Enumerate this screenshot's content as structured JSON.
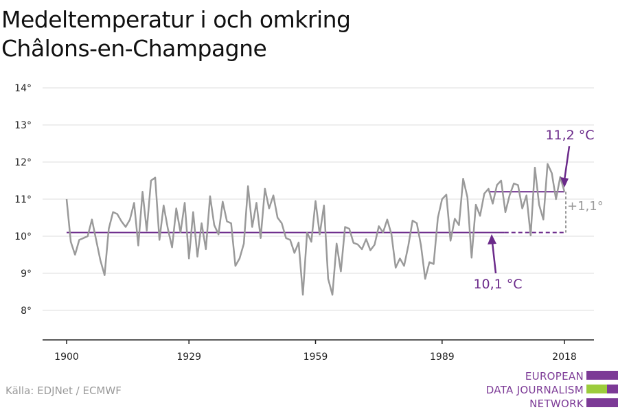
{
  "title_lines": [
    "Medeltemperatur i och omkring",
    "Châlons-en-Champagne"
  ],
  "source": "Källa: EDJNet / ECMWF",
  "logo": {
    "lines": [
      "EUROPEAN",
      "DATA JOURNALISM",
      "NETWORK"
    ],
    "colors": {
      "purple": "#7c3a96",
      "green": "#9ccc3c"
    }
  },
  "colors": {
    "series": "#9a9a9a",
    "avg_line": "#6b2a8a",
    "annotation": "#6b2a8a",
    "diff": "#9a9a9a",
    "grid": "#dddddd",
    "axis": "#222222"
  },
  "chart_data": {
    "type": "line",
    "title": "Medeltemperatur i och omkring Châlons-en-Champagne",
    "xlabel": "",
    "ylabel": "",
    "xlim": [
      1899,
      2020
    ],
    "ylim": [
      7.1,
      14.3
    ],
    "x_ticks": [
      1900,
      1929,
      1959,
      1989,
      2018
    ],
    "x_tick_labels": [
      "1900",
      "1929",
      "1959",
      "1989",
      "2018"
    ],
    "y_ticks": [
      8,
      9,
      10,
      11,
      12,
      13,
      14
    ],
    "y_tick_labels": [
      "8°",
      "9°",
      "10°",
      "11°",
      "12°",
      "13°",
      "14°"
    ],
    "grid": true,
    "series": [
      {
        "x_start": 1900,
        "x_end": 2018,
        "values": [
          11.0,
          9.85,
          9.5,
          9.9,
          9.95,
          10.0,
          10.45,
          9.9,
          9.35,
          8.95,
          10.2,
          10.65,
          10.6,
          10.4,
          10.25,
          10.45,
          10.9,
          9.75,
          11.2,
          10.15,
          11.5,
          11.58,
          9.9,
          10.83,
          10.2,
          9.7,
          10.75,
          10.1,
          10.9,
          9.4,
          10.65,
          9.45,
          10.35,
          9.65,
          11.08,
          10.3,
          10.05,
          10.93,
          10.4,
          10.35,
          9.2,
          9.4,
          9.8,
          11.35,
          10.25,
          10.9,
          9.95,
          11.28,
          10.75,
          11.1,
          10.5,
          10.35,
          9.95,
          9.9,
          9.55,
          9.83,
          8.42,
          10.1,
          9.85,
          10.95,
          10.05,
          10.83,
          8.85,
          8.42,
          9.8,
          9.05,
          10.25,
          10.2,
          9.82,
          9.78,
          9.65,
          9.92,
          9.62,
          9.77,
          10.27,
          10.1,
          10.45,
          10.05,
          9.15,
          9.4,
          9.2,
          9.75,
          10.42,
          10.35,
          9.75,
          8.85,
          9.3,
          9.25,
          10.5,
          11.0,
          11.12,
          9.88,
          10.47,
          10.3,
          11.55,
          11.05,
          9.42,
          10.85,
          10.55,
          11.15,
          11.28,
          10.88,
          11.38,
          11.5,
          10.65,
          11.1,
          11.42,
          11.38,
          10.75,
          11.1,
          10.02,
          11.85,
          10.85,
          10.45,
          11.95,
          11.7,
          11.0,
          11.6,
          11.2
        ]
      }
    ],
    "reference": {
      "baseline_value": 10.1,
      "baseline_x": [
        1900,
        2018
      ],
      "recent_value": 11.2,
      "recent_x": [
        2000,
        2018
      ],
      "difference": "+1,1°"
    },
    "annotations": {
      "recent_label": "11,2 °C",
      "baseline_label": "10,1 °C",
      "difference_label": "+1,1°"
    }
  }
}
